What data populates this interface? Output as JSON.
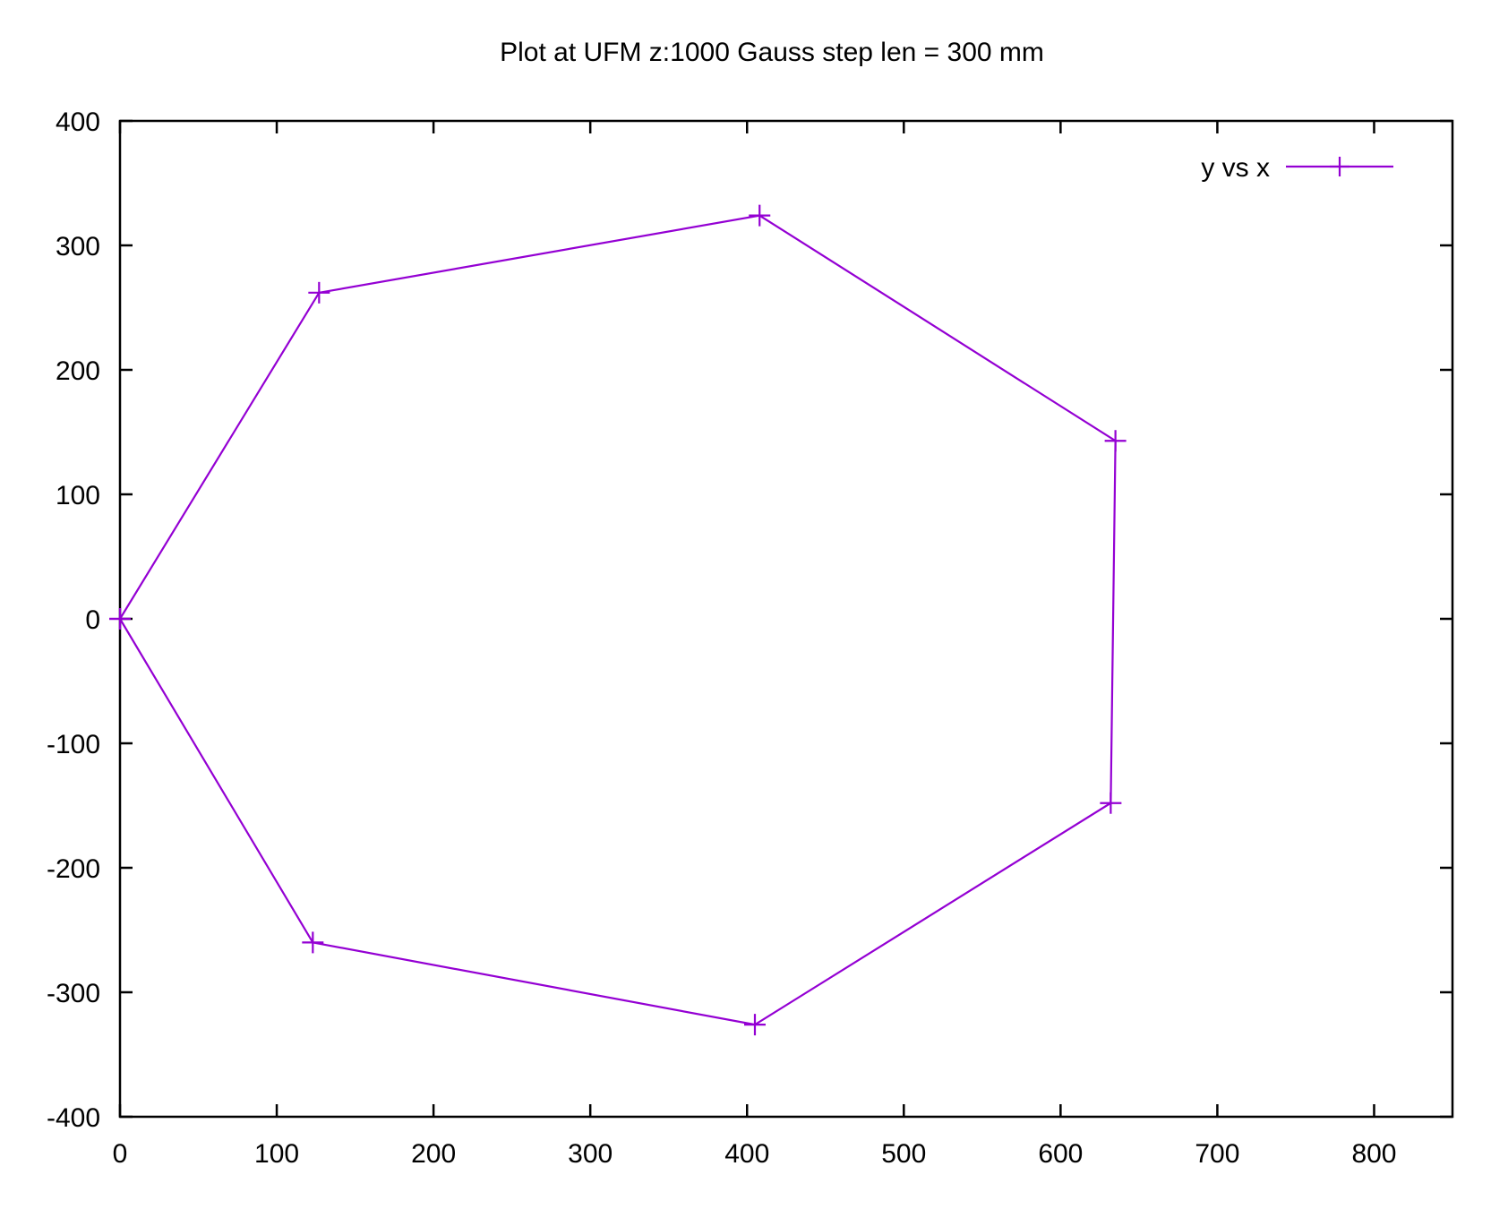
{
  "chart_data": {
    "type": "line",
    "title": "Plot at UFM z:1000 Gauss step len = 300 mm",
    "xlabel": "",
    "ylabel": "",
    "xlim": [
      0,
      850
    ],
    "ylim": [
      -400,
      400
    ],
    "xticks": [
      0,
      100,
      200,
      300,
      400,
      500,
      600,
      700,
      800
    ],
    "yticks": [
      -400,
      -300,
      -200,
      -100,
      0,
      100,
      200,
      300,
      400
    ],
    "grid": false,
    "legend_position": "top-right",
    "series": [
      {
        "name": "y vs x",
        "color": "#9400D3",
        "marker": "plus",
        "points": [
          {
            "x": 0,
            "y": 0
          },
          {
            "x": 127,
            "y": 262
          },
          {
            "x": 408,
            "y": 324
          },
          {
            "x": 635,
            "y": 143
          },
          {
            "x": 632,
            "y": -148
          },
          {
            "x": 405,
            "y": -326
          },
          {
            "x": 123,
            "y": -260
          },
          {
            "x": 0,
            "y": 0
          }
        ]
      }
    ]
  }
}
